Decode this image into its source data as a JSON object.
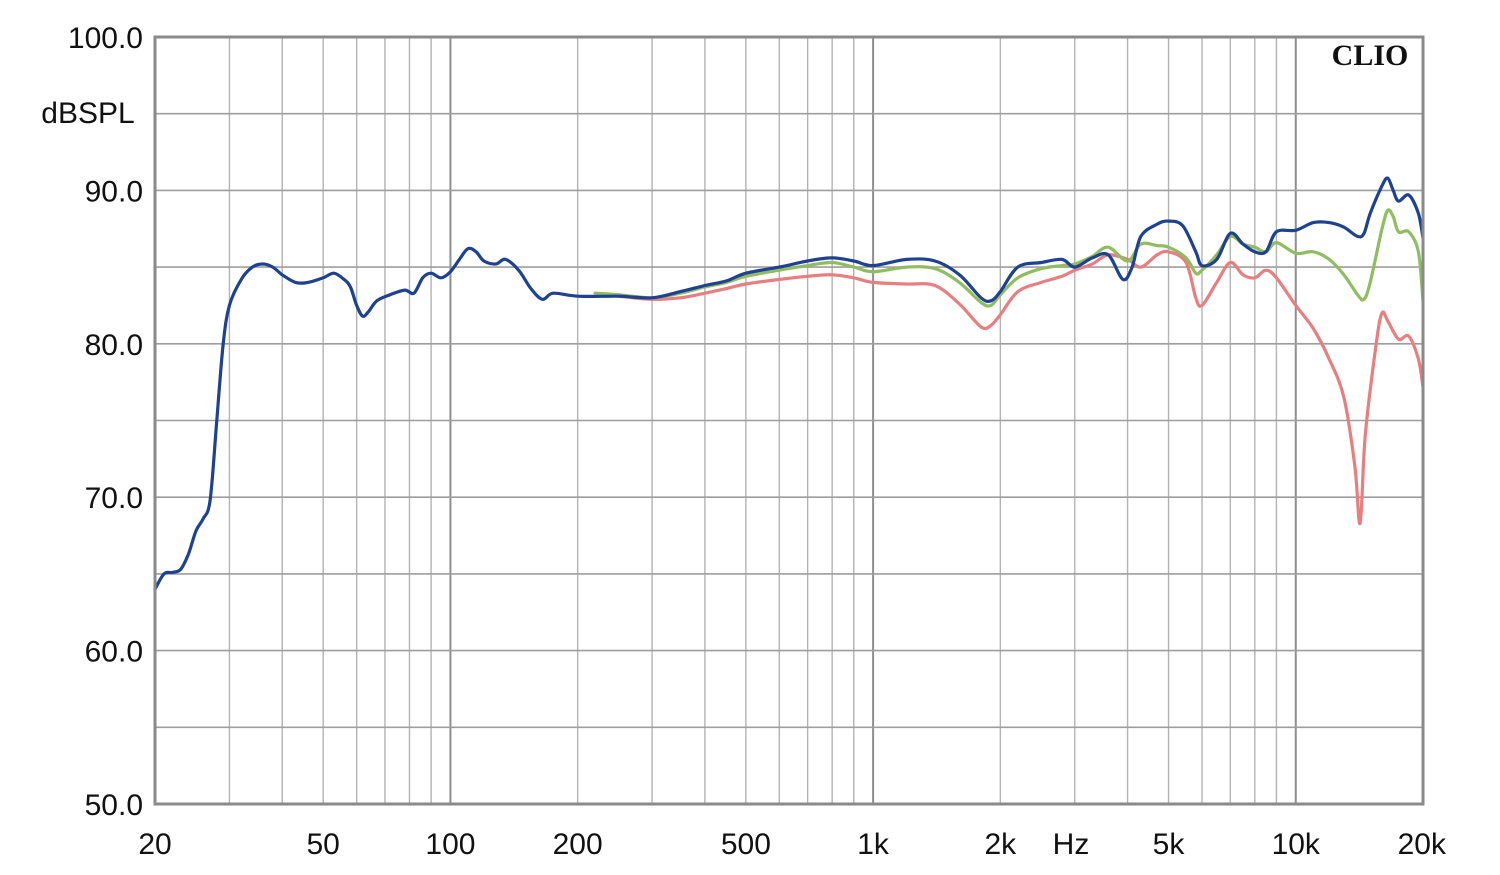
{
  "chart_data": {
    "type": "line",
    "title": "",
    "xlabel": "Hz",
    "ylabel": "dBSPL",
    "brand": "CLIO",
    "x_scale": "log",
    "xlim": [
      20,
      20000
    ],
    "ylim": [
      50,
      100
    ],
    "grid": true,
    "x_tick_labels": [
      {
        "value": 20,
        "label": "20"
      },
      {
        "value": 50,
        "label": "50"
      },
      {
        "value": 100,
        "label": "100"
      },
      {
        "value": 200,
        "label": "200"
      },
      {
        "value": 500,
        "label": "500"
      },
      {
        "value": 1000,
        "label": "1k"
      },
      {
        "value": 2000,
        "label": "2k"
      },
      {
        "value": 5000,
        "label": "5k"
      },
      {
        "value": 10000,
        "label": "10k"
      },
      {
        "value": 20000,
        "label": "20k"
      }
    ],
    "y_tick_labels": [
      {
        "value": 100,
        "label": "100.0"
      },
      {
        "value": 90,
        "label": "90.0"
      },
      {
        "value": 80,
        "label": "80.0"
      },
      {
        "value": 70,
        "label": "70.0"
      },
      {
        "value": 60,
        "label": "60.0"
      },
      {
        "value": 50,
        "label": "50.0"
      }
    ],
    "series": [
      {
        "color": "#e77e80",
        "points": [
          [
            220,
            83.3
          ],
          [
            250,
            83.1
          ],
          [
            300,
            82.9
          ],
          [
            350,
            83.0
          ],
          [
            400,
            83.3
          ],
          [
            450,
            83.6
          ],
          [
            500,
            83.9
          ],
          [
            600,
            84.2
          ],
          [
            700,
            84.4
          ],
          [
            800,
            84.5
          ],
          [
            900,
            84.3
          ],
          [
            1000,
            84.0
          ],
          [
            1200,
            83.9
          ],
          [
            1400,
            83.8
          ],
          [
            1600,
            82.6
          ],
          [
            1800,
            81.1
          ],
          [
            1900,
            81.2
          ],
          [
            2000,
            81.9
          ],
          [
            2200,
            83.4
          ],
          [
            2500,
            84.0
          ],
          [
            2800,
            84.4
          ],
          [
            3000,
            84.8
          ],
          [
            3300,
            85.2
          ],
          [
            3600,
            85.8
          ],
          [
            4000,
            85.5
          ],
          [
            4300,
            85.0
          ],
          [
            4700,
            85.8
          ],
          [
            5000,
            86.0
          ],
          [
            5500,
            85.3
          ],
          [
            5800,
            83.0
          ],
          [
            6000,
            82.5
          ],
          [
            6500,
            84.0
          ],
          [
            7000,
            85.3
          ],
          [
            7500,
            84.5
          ],
          [
            8000,
            84.3
          ],
          [
            8500,
            84.8
          ],
          [
            9000,
            84.3
          ],
          [
            10000,
            82.5
          ],
          [
            11000,
            81.0
          ],
          [
            12000,
            79.0
          ],
          [
            13000,
            76.5
          ],
          [
            13800,
            72.0
          ],
          [
            14200,
            68.3
          ],
          [
            14600,
            74.0
          ],
          [
            15500,
            80.0
          ],
          [
            16000,
            82.0
          ],
          [
            16500,
            81.5
          ],
          [
            17500,
            80.3
          ],
          [
            18500,
            80.5
          ],
          [
            19500,
            79.0
          ],
          [
            20000,
            77.2
          ]
        ]
      },
      {
        "color": "#8fbd5f",
        "points": [
          [
            220,
            83.3
          ],
          [
            250,
            83.2
          ],
          [
            300,
            83.0
          ],
          [
            350,
            83.3
          ],
          [
            400,
            83.7
          ],
          [
            450,
            84.0
          ],
          [
            500,
            84.4
          ],
          [
            600,
            84.8
          ],
          [
            700,
            85.1
          ],
          [
            800,
            85.3
          ],
          [
            900,
            85.0
          ],
          [
            1000,
            84.7
          ],
          [
            1200,
            85.0
          ],
          [
            1400,
            84.9
          ],
          [
            1600,
            84.0
          ],
          [
            1800,
            82.7
          ],
          [
            1900,
            82.5
          ],
          [
            2000,
            83.2
          ],
          [
            2200,
            84.3
          ],
          [
            2500,
            84.9
          ],
          [
            2800,
            85.1
          ],
          [
            3000,
            85.2
          ],
          [
            3300,
            85.7
          ],
          [
            3600,
            86.3
          ],
          [
            4000,
            85.4
          ],
          [
            4300,
            86.5
          ],
          [
            4700,
            86.4
          ],
          [
            5000,
            86.3
          ],
          [
            5500,
            85.6
          ],
          [
            5800,
            84.6
          ],
          [
            6000,
            84.8
          ],
          [
            6500,
            85.8
          ],
          [
            7000,
            87.0
          ],
          [
            7500,
            86.5
          ],
          [
            8000,
            86.3
          ],
          [
            8500,
            86.0
          ],
          [
            9000,
            86.6
          ],
          [
            10000,
            85.9
          ],
          [
            11000,
            86.0
          ],
          [
            12000,
            85.5
          ],
          [
            13000,
            84.5
          ],
          [
            14000,
            83.2
          ],
          [
            14500,
            82.9
          ],
          [
            15000,
            84.0
          ],
          [
            16000,
            87.5
          ],
          [
            16500,
            88.7
          ],
          [
            17000,
            88.3
          ],
          [
            17500,
            87.3
          ],
          [
            18500,
            87.3
          ],
          [
            19500,
            86.0
          ],
          [
            20000,
            82.8
          ]
        ]
      },
      {
        "color": "#1e4291",
        "points": [
          [
            20,
            64.0
          ],
          [
            21,
            65.0
          ],
          [
            22,
            65.1
          ],
          [
            23,
            65.3
          ],
          [
            24,
            66.3
          ],
          [
            25,
            67.8
          ],
          [
            26,
            68.6
          ],
          [
            27,
            69.8
          ],
          [
            28,
            75.0
          ],
          [
            29,
            80.0
          ],
          [
            30,
            82.5
          ],
          [
            32,
            84.2
          ],
          [
            34,
            85.0
          ],
          [
            36,
            85.2
          ],
          [
            38,
            85.0
          ],
          [
            40,
            84.5
          ],
          [
            43,
            84.0
          ],
          [
            46,
            84.0
          ],
          [
            50,
            84.3
          ],
          [
            53,
            84.6
          ],
          [
            56,
            84.2
          ],
          [
            58,
            83.7
          ],
          [
            60,
            82.5
          ],
          [
            62,
            81.8
          ],
          [
            64,
            82.1
          ],
          [
            67,
            82.8
          ],
          [
            72,
            83.2
          ],
          [
            78,
            83.5
          ],
          [
            82,
            83.3
          ],
          [
            86,
            84.3
          ],
          [
            90,
            84.6
          ],
          [
            95,
            84.3
          ],
          [
            100,
            84.7
          ],
          [
            105,
            85.5
          ],
          [
            110,
            86.2
          ],
          [
            115,
            86.0
          ],
          [
            120,
            85.4
          ],
          [
            128,
            85.2
          ],
          [
            135,
            85.5
          ],
          [
            145,
            84.8
          ],
          [
            155,
            83.6
          ],
          [
            165,
            82.9
          ],
          [
            175,
            83.3
          ],
          [
            200,
            83.1
          ],
          [
            250,
            83.1
          ],
          [
            300,
            83.0
          ],
          [
            350,
            83.4
          ],
          [
            400,
            83.8
          ],
          [
            450,
            84.1
          ],
          [
            500,
            84.6
          ],
          [
            600,
            85.0
          ],
          [
            700,
            85.4
          ],
          [
            800,
            85.6
          ],
          [
            900,
            85.4
          ],
          [
            1000,
            85.1
          ],
          [
            1200,
            85.5
          ],
          [
            1400,
            85.4
          ],
          [
            1600,
            84.5
          ],
          [
            1800,
            83.0
          ],
          [
            1900,
            82.8
          ],
          [
            2000,
            83.4
          ],
          [
            2200,
            85.0
          ],
          [
            2500,
            85.3
          ],
          [
            2800,
            85.5
          ],
          [
            3000,
            85.0
          ],
          [
            3300,
            85.6
          ],
          [
            3600,
            85.8
          ],
          [
            3900,
            84.2
          ],
          [
            4100,
            85.0
          ],
          [
            4300,
            87.0
          ],
          [
            4700,
            87.8
          ],
          [
            5000,
            88.0
          ],
          [
            5400,
            87.7
          ],
          [
            5800,
            86.0
          ],
          [
            6000,
            85.1
          ],
          [
            6500,
            85.5
          ],
          [
            7000,
            87.2
          ],
          [
            7500,
            86.5
          ],
          [
            8000,
            86.0
          ],
          [
            8500,
            86.0
          ],
          [
            9000,
            87.3
          ],
          [
            10000,
            87.4
          ],
          [
            11000,
            87.9
          ],
          [
            12000,
            87.9
          ],
          [
            13000,
            87.6
          ],
          [
            14000,
            87.0
          ],
          [
            14500,
            87.2
          ],
          [
            15000,
            88.5
          ],
          [
            16000,
            90.3
          ],
          [
            16500,
            90.8
          ],
          [
            17000,
            90.0
          ],
          [
            17500,
            89.3
          ],
          [
            18500,
            89.7
          ],
          [
            19500,
            88.5
          ],
          [
            20000,
            86.9
          ]
        ]
      }
    ]
  }
}
